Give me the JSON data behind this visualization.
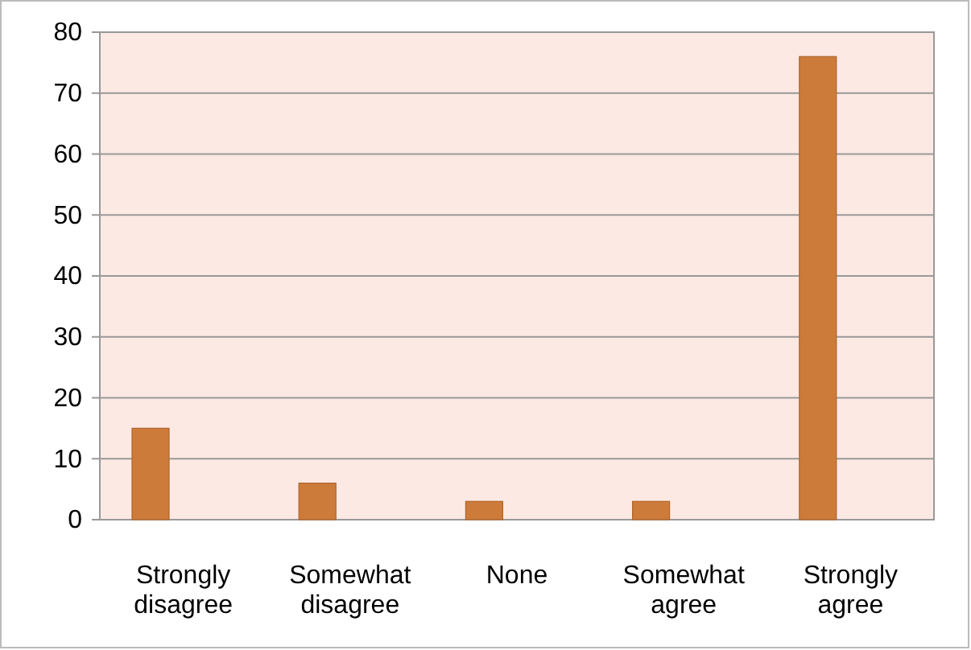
{
  "chart_data": {
    "type": "bar",
    "categories": [
      "Strongly disagree",
      "Somewhat disagree",
      "None",
      "Somewhat agree",
      "Strongly agree"
    ],
    "values": [
      15,
      6,
      3,
      3,
      76
    ],
    "color": "#cd7b3b",
    "ylim": [
      0,
      80
    ],
    "yticks": [
      0,
      10,
      20,
      30,
      40,
      50,
      60,
      70,
      80
    ],
    "grid": "y"
  }
}
